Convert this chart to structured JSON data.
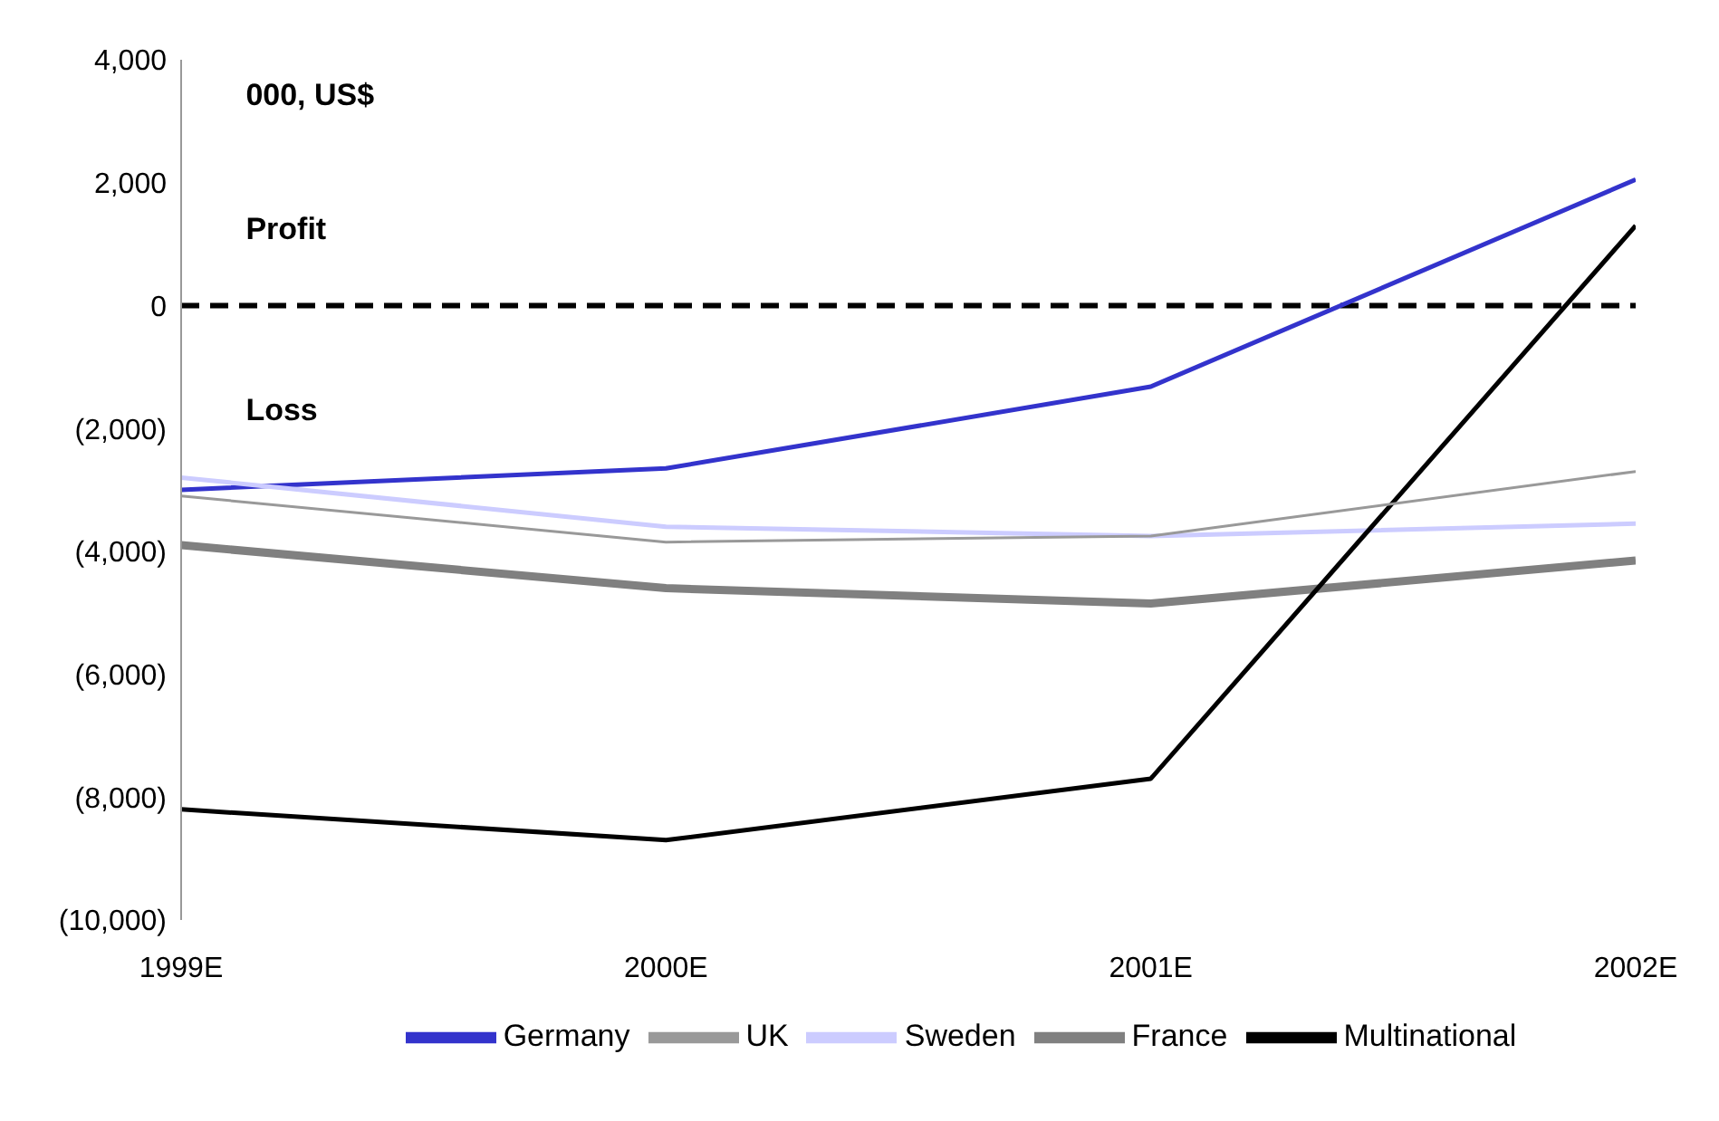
{
  "chart_data": {
    "type": "line",
    "categories": [
      "1999E",
      "2000E",
      "2001E",
      "2002E"
    ],
    "series": [
      {
        "name": "Germany",
        "color": "#3333cc",
        "values": [
          -3000,
          -2650,
          -1320,
          2050
        ]
      },
      {
        "name": "UK",
        "color": "#999999",
        "values": [
          -3100,
          -3850,
          -3750,
          -2700
        ]
      },
      {
        "name": "Sweden",
        "color": "#ccccff",
        "values": [
          -2800,
          -3600,
          -3750,
          -3550
        ]
      },
      {
        "name": "France",
        "color": "#808080",
        "values": [
          -3900,
          -4600,
          -4850,
          -4150
        ]
      },
      {
        "name": "Multinational",
        "color": "#000000",
        "values": [
          -8200,
          -8700,
          -7700,
          1300
        ]
      }
    ],
    "ylim": [
      -10000,
      4000
    ],
    "yticks": [
      {
        "value": -10000,
        "label": "(10,000)"
      },
      {
        "value": -8000,
        "label": "(8,000)"
      },
      {
        "value": -6000,
        "label": "(6,000)"
      },
      {
        "value": -4000,
        "label": "(4,000)"
      },
      {
        "value": -2000,
        "label": "(2,000)"
      },
      0,
      {
        "value": 2000,
        "label": "2,000"
      },
      {
        "value": 4000,
        "label": "4,000"
      }
    ],
    "ref_lines": [
      {
        "axis": "y",
        "value": 0,
        "color": "#000000",
        "line_style": "dashed"
      }
    ],
    "annotations": [
      "000, US$",
      "Profit",
      "Loss"
    ],
    "grid": false,
    "legend": "bottom",
    "marker": "none",
    "line_style": "solid"
  }
}
